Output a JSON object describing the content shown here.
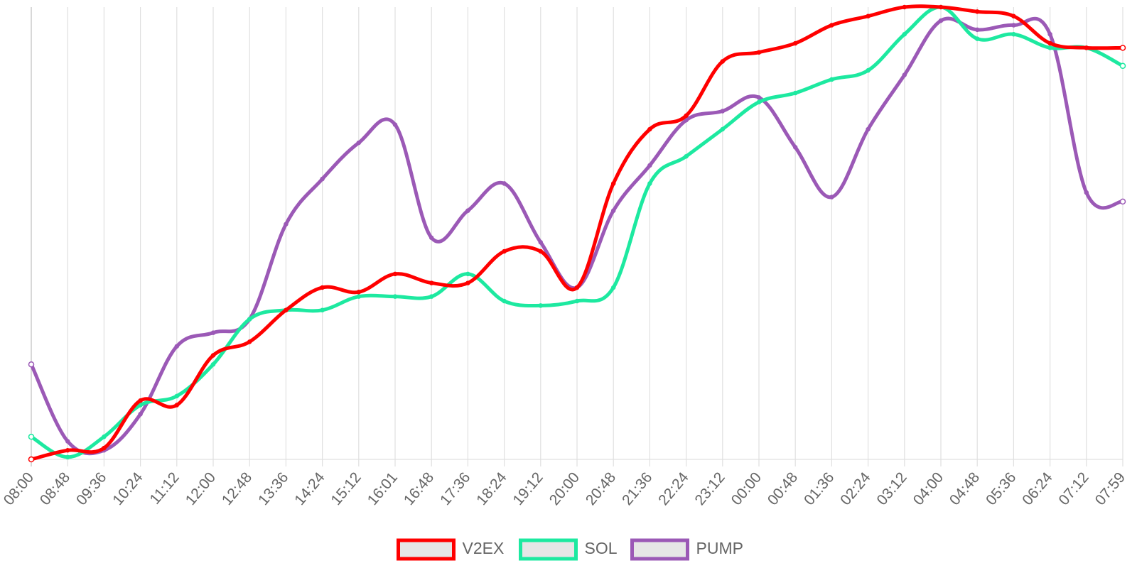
{
  "chart_data": {
    "type": "line",
    "title": "",
    "xlabel": "",
    "ylabel": "",
    "grid": "vertical",
    "legend_position": "bottom-center",
    "y_axis_visible": false,
    "ylim": [
      0,
      100
    ],
    "x": [
      "08:00",
      "08:48",
      "09:36",
      "10:24",
      "11:12",
      "12:00",
      "12:48",
      "13:36",
      "14:24",
      "15:12",
      "16:01",
      "16:48",
      "17:36",
      "18:24",
      "19:12",
      "20:00",
      "20:48",
      "21:36",
      "22:24",
      "23:12",
      "00:00",
      "00:48",
      "01:36",
      "02:24",
      "03:12",
      "04:00",
      "04:48",
      "05:36",
      "06:24",
      "07:12",
      "07:59"
    ],
    "series": [
      {
        "name": "V2EX",
        "color": "#ff0000",
        "values": [
          0,
          2,
          2.5,
          13,
          12,
          23,
          26,
          33,
          38,
          37,
          41,
          39,
          39,
          46,
          46,
          38,
          61,
          73,
          76,
          88,
          90,
          92,
          96,
          98,
          100,
          100,
          99,
          98,
          92,
          91,
          91
        ]
      },
      {
        "name": "SOL",
        "color": "#1de9a0",
        "values": [
          5,
          0.5,
          5,
          12,
          14,
          21,
          31,
          33,
          33,
          36,
          36,
          36,
          41,
          35,
          34,
          35,
          38,
          61,
          67,
          73,
          79,
          81,
          84,
          86,
          94,
          100,
          93,
          94,
          91,
          91,
          87
        ]
      },
      {
        "name": "PUMP",
        "color": "#9b59b6",
        "values": [
          21,
          4,
          2,
          10,
          25,
          28,
          31,
          52,
          62,
          70,
          74,
          49,
          55,
          61,
          48,
          38,
          55,
          65,
          75,
          77,
          80,
          69,
          58,
          73,
          85,
          97,
          95,
          96,
          94,
          59,
          57
        ]
      }
    ]
  }
}
